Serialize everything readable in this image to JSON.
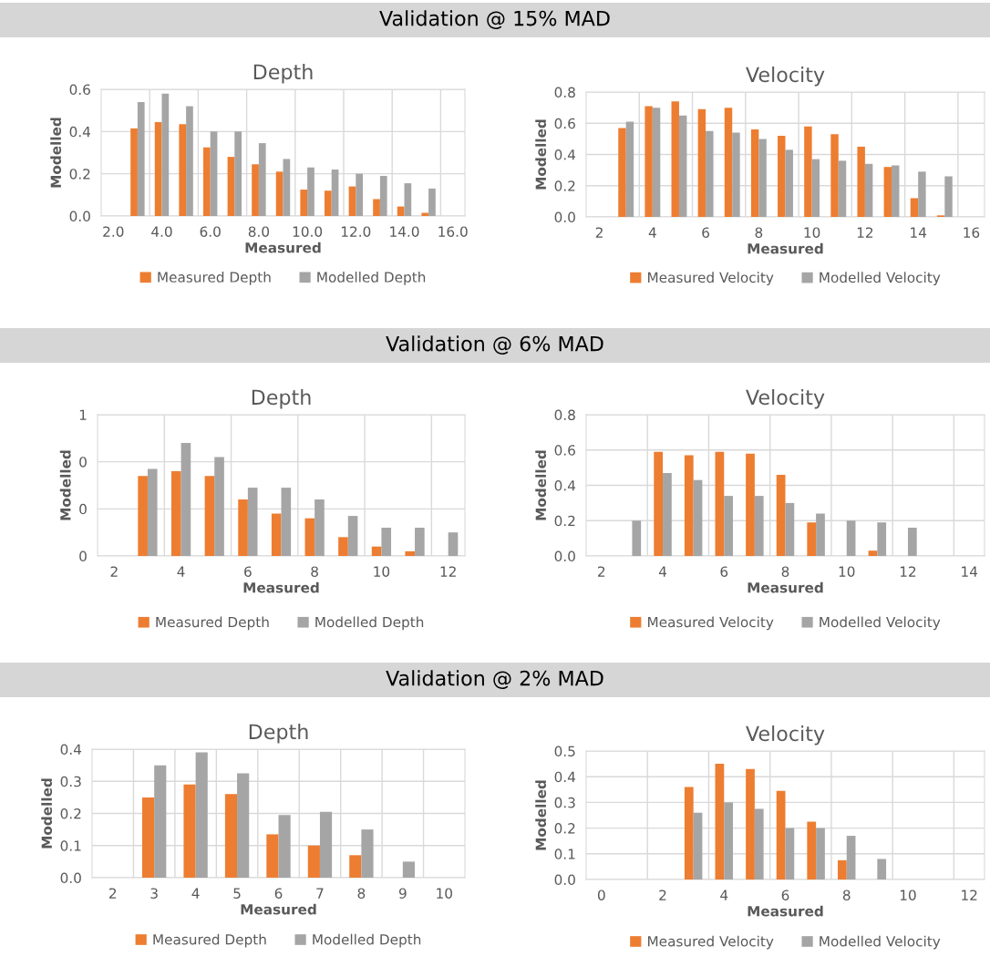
{
  "chart_data": [
    {
      "type": "bar",
      "title": "Depth",
      "xlabel": "Measured",
      "ylabel": "Modelled",
      "annotations": [
        "Validation @ 15% MAD"
      ],
      "categories": [
        "2.0",
        null,
        "4.0",
        null,
        "6.0",
        null,
        "8.0",
        null,
        "10.0",
        null,
        "12.0",
        null,
        "14.0",
        null,
        "16.0"
      ],
      "series": [
        {
          "name": "Measured Depth",
          "color": "#ed7d31",
          "values": [
            null,
            0.415,
            0.445,
            0.435,
            0.325,
            0.28,
            0.245,
            0.21,
            0.125,
            0.12,
            0.14,
            0.08,
            0.045,
            0.015,
            null
          ]
        },
        {
          "name": "Modelled Depth",
          "color": "#a5a5a5",
          "values": [
            null,
            0.54,
            0.58,
            0.52,
            0.4,
            0.4,
            0.345,
            0.27,
            0.23,
            0.22,
            0.2,
            0.19,
            0.155,
            0.13,
            null
          ]
        }
      ],
      "ylim": [
        0,
        0.6
      ],
      "yticks": [
        {
          "value": 0,
          "label": "0.0"
        },
        0.2,
        0.4,
        0.6
      ],
      "grid": true,
      "legend": "bottom"
    },
    {
      "type": "bar",
      "title": "Velocity",
      "xlabel": "Measured",
      "ylabel": "Modelled",
      "categories": [
        "2",
        null,
        "4",
        null,
        "6",
        null,
        "8",
        null,
        "10",
        null,
        "12",
        null,
        "14",
        null,
        "16"
      ],
      "series": [
        {
          "name": "Measured Velocity",
          "color": "#ed7d31",
          "values": [
            null,
            0.57,
            0.71,
            0.74,
            0.69,
            0.7,
            0.56,
            0.52,
            0.58,
            0.53,
            0.45,
            0.32,
            0.12,
            0.01,
            null
          ]
        },
        {
          "name": "Modelled Velocity",
          "color": "#a5a5a5",
          "values": [
            null,
            0.61,
            0.7,
            0.65,
            0.55,
            0.54,
            0.5,
            0.43,
            0.37,
            0.36,
            0.34,
            0.33,
            0.29,
            0.26,
            null
          ]
        }
      ],
      "ylim": [
        0,
        0.8
      ],
      "yticks": [
        {
          "value": 0,
          "label": "0.0"
        },
        0.2,
        0.4,
        0.6,
        0.8
      ],
      "grid": true,
      "legend": "bottom"
    },
    {
      "type": "bar",
      "title": "Depth",
      "xlabel": "Measured",
      "ylabel": "Modelled",
      "annotations": [
        "Validation @ 6% MAD"
      ],
      "categories": [
        "2",
        null,
        "4",
        null,
        "6",
        null,
        "8",
        null,
        "10",
        null,
        "12"
      ],
      "series": [
        {
          "name": "Measured Depth",
          "color": "#ed7d31",
          "values": [
            null,
            0.34,
            0.36,
            0.34,
            0.24,
            0.18,
            0.16,
            0.08,
            0.04,
            0.02,
            null
          ]
        },
        {
          "name": "Modelled Depth",
          "color": "#a5a5a5",
          "values": [
            null,
            0.37,
            0.48,
            0.42,
            0.29,
            0.29,
            0.24,
            0.17,
            0.12,
            0.12,
            0.1
          ]
        }
      ],
      "ylim": [
        0,
        0.6
      ],
      "yticks": [
        {
          "value": 0,
          "label": "0"
        },
        {
          "value": 0.2,
          "label": "0"
        },
        {
          "value": 0.4,
          "label": "0"
        },
        {
          "value": 0.6,
          "label": "1"
        }
      ],
      "grid": true,
      "legend": "bottom"
    },
    {
      "type": "bar",
      "title": "Velocity",
      "xlabel": "Measured",
      "ylabel": "Modelled",
      "categories": [
        "2",
        null,
        "4",
        null,
        "6",
        null,
        "8",
        null,
        "10",
        null,
        "12",
        null,
        "14"
      ],
      "series": [
        {
          "name": "Measured Velocity",
          "color": "#ed7d31",
          "values": [
            null,
            null,
            0.59,
            0.57,
            0.59,
            0.58,
            0.46,
            0.19,
            null,
            0.03,
            null,
            null,
            null
          ]
        },
        {
          "name": "Modelled Velocity",
          "color": "#a5a5a5",
          "values": [
            null,
            0.2,
            0.47,
            0.43,
            0.34,
            0.34,
            0.3,
            0.24,
            0.2,
            0.19,
            0.16,
            null,
            null
          ]
        }
      ],
      "ylim": [
        0,
        0.8
      ],
      "yticks": [
        {
          "value": 0,
          "label": "0.0"
        },
        0.2,
        0.4,
        0.6,
        0.8
      ],
      "grid": true,
      "legend": "bottom"
    },
    {
      "type": "bar",
      "title": "Depth",
      "xlabel": "Measured",
      "ylabel": "Modelled",
      "annotations": [
        "Validation @ 2% MAD"
      ],
      "categories": [
        "2",
        "3",
        "4",
        "5",
        "6",
        "7",
        "8",
        "9",
        "10"
      ],
      "series": [
        {
          "name": "Measured Depth",
          "color": "#ed7d31",
          "values": [
            null,
            0.25,
            0.29,
            0.26,
            0.135,
            0.1,
            0.07,
            null,
            null
          ]
        },
        {
          "name": "Modelled Depth",
          "color": "#a5a5a5",
          "values": [
            null,
            0.35,
            0.39,
            0.325,
            0.195,
            0.205,
            0.15,
            0.05,
            null
          ]
        }
      ],
      "ylim": [
        0,
        0.4
      ],
      "yticks": [
        {
          "value": 0,
          "label": "0.0"
        },
        0.1,
        0.2,
        0.3,
        0.4
      ],
      "grid": true,
      "legend": "bottom"
    },
    {
      "type": "bar",
      "title": "Velocity",
      "xlabel": "Measured",
      "ylabel": "Modelled",
      "categories": [
        "0",
        null,
        "2",
        null,
        "4",
        null,
        "6",
        null,
        "8",
        null,
        "10",
        null,
        "12"
      ],
      "series": [
        {
          "name": "Measured Velocity",
          "color": "#ed7d31",
          "values": [
            null,
            null,
            null,
            0.36,
            0.45,
            0.43,
            0.345,
            0.225,
            0.075,
            null,
            null,
            null,
            null
          ]
        },
        {
          "name": "Modelled Velocity",
          "color": "#a5a5a5",
          "values": [
            null,
            null,
            null,
            0.26,
            0.3,
            0.275,
            0.2,
            0.2,
            0.17,
            0.08,
            null,
            null,
            null
          ]
        }
      ],
      "ylim": [
        0,
        0.5
      ],
      "yticks": [
        {
          "value": 0,
          "label": "0.0"
        },
        0.1,
        0.2,
        0.3,
        0.4,
        0.5
      ],
      "grid": true,
      "legend": "bottom"
    }
  ]
}
